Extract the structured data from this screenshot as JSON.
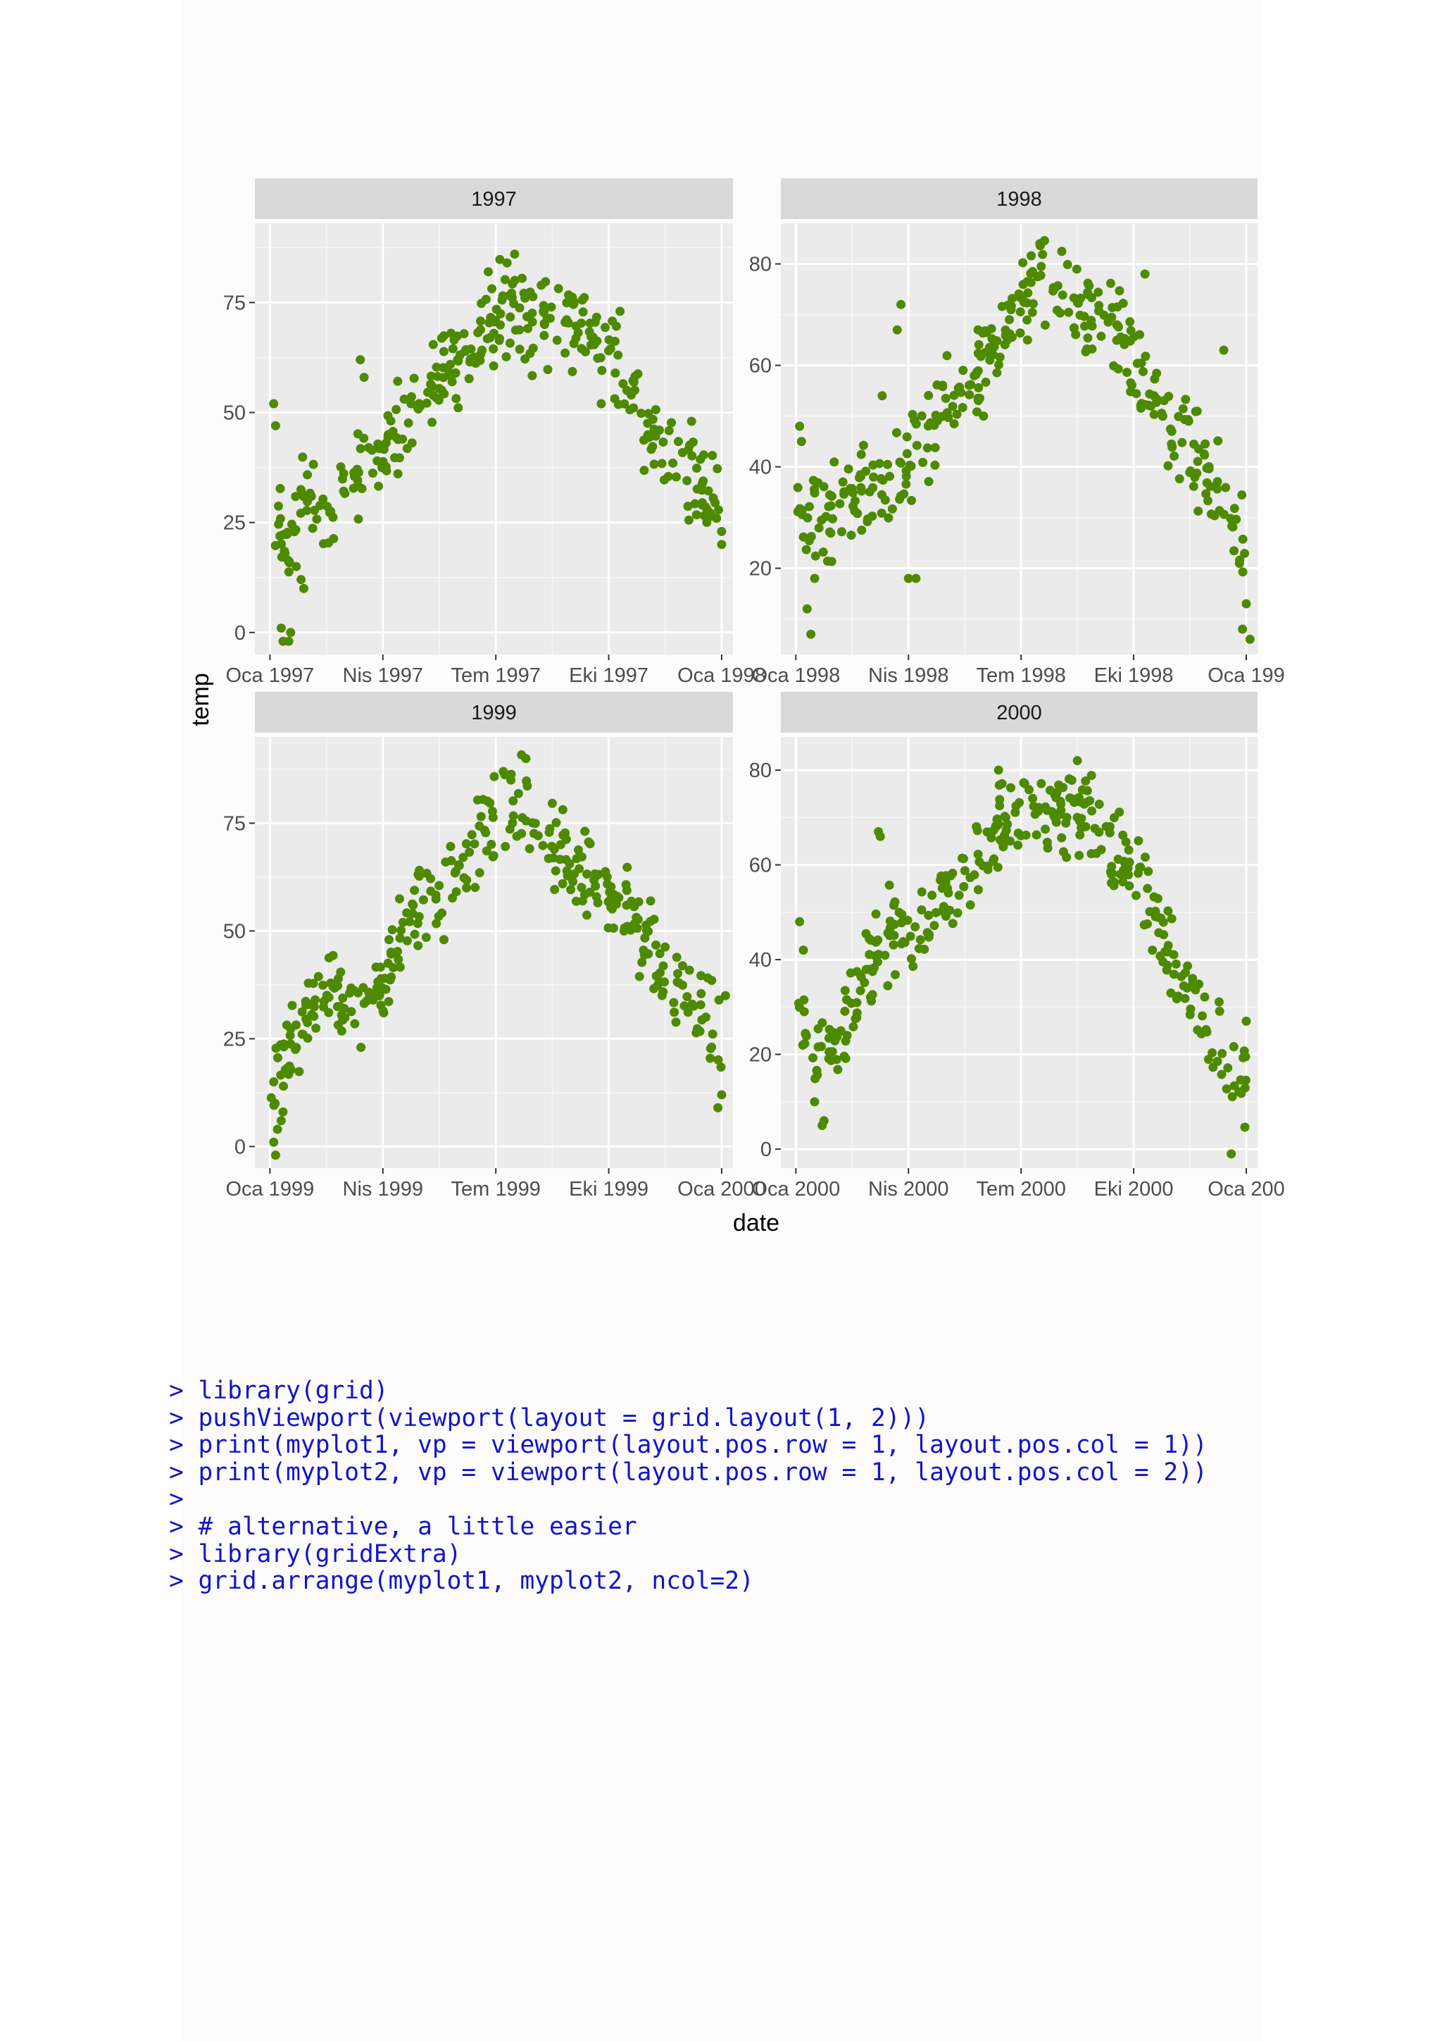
{
  "chart_data": {
    "type": "scatter",
    "xlabel": "date",
    "ylabel": "temp",
    "point_color": "#4d8a00",
    "panel_bg": "#ebebeb",
    "strip_bg": "#d9d9d9",
    "grid": true,
    "panels": [
      {
        "strip": "1997",
        "y_range": [
          -5,
          93
        ],
        "y_ticks": [
          0,
          25,
          50,
          75
        ],
        "x_range": [
          -0.4,
          12.3
        ],
        "x_ticks": [
          0,
          3,
          6,
          9,
          12
        ],
        "x_tick_labels": [
          "Oca 1997",
          "Nis 1997",
          "Tem 1997",
          "Eki 1997",
          "Oca 1998"
        ],
        "anchors": [
          [
            0,
            24
          ],
          [
            0.5,
            20
          ],
          [
            1,
            28
          ],
          [
            1.5,
            28
          ],
          [
            2,
            34
          ],
          [
            2.5,
            38
          ],
          [
            3,
            42
          ],
          [
            3.5,
            48
          ],
          [
            4,
            52
          ],
          [
            4.5,
            58
          ],
          [
            5,
            62
          ],
          [
            5.5,
            67
          ],
          [
            6,
            72
          ],
          [
            6.5,
            74
          ],
          [
            7,
            70
          ],
          [
            7.5,
            70
          ],
          [
            8,
            68
          ],
          [
            8.5,
            66
          ],
          [
            9,
            64
          ],
          [
            9.5,
            58
          ],
          [
            10,
            48
          ],
          [
            10.5,
            40
          ],
          [
            11,
            37
          ],
          [
            11.5,
            32
          ],
          [
            12,
            28
          ]
        ],
        "spread": 7,
        "n_points": 330,
        "seed": 11,
        "extras": [
          [
            0.1,
            52
          ],
          [
            0.15,
            47
          ],
          [
            0.3,
            1
          ],
          [
            0.35,
            -2
          ],
          [
            0.5,
            -2
          ],
          [
            0.55,
            0
          ],
          [
            0.7,
            15
          ],
          [
            0.9,
            10
          ],
          [
            0.4,
            18
          ],
          [
            2.4,
            62
          ],
          [
            2.5,
            58
          ],
          [
            6.3,
            84
          ],
          [
            6.5,
            86
          ],
          [
            5.8,
            82
          ],
          [
            9.3,
            73
          ],
          [
            11.2,
            48
          ],
          [
            12,
            20
          ],
          [
            8.8,
            52
          ]
        ]
      },
      {
        "strip": "1998",
        "y_range": [
          3,
          88
        ],
        "y_ticks": [
          20,
          40,
          60,
          80
        ],
        "x_range": [
          -0.4,
          12.3
        ],
        "x_ticks": [
          0,
          3,
          6,
          9,
          12
        ],
        "x_tick_labels": [
          "Oca 1998",
          "Nis 1998",
          "Tem 1998",
          "Eki 1998",
          "Oca 199"
        ],
        "anchors": [
          [
            0,
            32
          ],
          [
            0.5,
            28
          ],
          [
            1,
            32
          ],
          [
            1.5,
            35
          ],
          [
            2,
            38
          ],
          [
            2.5,
            37
          ],
          [
            3,
            40
          ],
          [
            3.5,
            46
          ],
          [
            4,
            52
          ],
          [
            4.5,
            56
          ],
          [
            5,
            60
          ],
          [
            5.5,
            66
          ],
          [
            6,
            72
          ],
          [
            6.5,
            75
          ],
          [
            7,
            74
          ],
          [
            7.5,
            73
          ],
          [
            8,
            70
          ],
          [
            8.5,
            66
          ],
          [
            9,
            60
          ],
          [
            9.5,
            55
          ],
          [
            10,
            48
          ],
          [
            10.5,
            44
          ],
          [
            11,
            38
          ],
          [
            11.5,
            33
          ],
          [
            12,
            22
          ]
        ],
        "spread": 6.5,
        "n_points": 330,
        "seed": 23,
        "extras": [
          [
            0.1,
            48
          ],
          [
            0.15,
            45
          ],
          [
            0.3,
            12
          ],
          [
            0.4,
            7
          ],
          [
            0.5,
            18
          ],
          [
            2.3,
            54
          ],
          [
            2.8,
            72
          ],
          [
            2.7,
            67
          ],
          [
            3,
            18
          ],
          [
            3.2,
            18
          ],
          [
            6.5,
            84
          ],
          [
            5,
            50
          ],
          [
            11.4,
            63
          ],
          [
            11.9,
            8
          ],
          [
            12.1,
            6
          ],
          [
            12,
            13
          ],
          [
            9.3,
            78
          ]
        ]
      },
      {
        "strip": "1999",
        "y_range": [
          -5,
          95
        ],
        "y_ticks": [
          0,
          25,
          50,
          75
        ],
        "x_range": [
          -0.4,
          12.3
        ],
        "x_ticks": [
          0,
          3,
          6,
          9,
          12
        ],
        "x_tick_labels": [
          "Oca 1999",
          "Nis 1999",
          "Tem 1999",
          "Eki 1999",
          "Oca 2000"
        ],
        "anchors": [
          [
            0,
            12
          ],
          [
            0.5,
            22
          ],
          [
            1,
            32
          ],
          [
            1.5,
            36
          ],
          [
            2,
            30
          ],
          [
            2.5,
            30
          ],
          [
            3,
            38
          ],
          [
            3.5,
            50
          ],
          [
            4,
            55
          ],
          [
            4.5,
            58
          ],
          [
            5,
            62
          ],
          [
            5.5,
            70
          ],
          [
            6,
            75
          ],
          [
            6.5,
            78
          ],
          [
            7,
            76
          ],
          [
            7.5,
            70
          ],
          [
            8,
            67
          ],
          [
            8.5,
            62
          ],
          [
            9,
            58
          ],
          [
            9.5,
            52
          ],
          [
            10,
            47
          ],
          [
            10.5,
            42
          ],
          [
            11,
            37
          ],
          [
            11.5,
            32
          ],
          [
            12,
            25
          ]
        ],
        "spread": 7,
        "n_points": 330,
        "seed": 37,
        "extras": [
          [
            0.1,
            1
          ],
          [
            0.15,
            -2
          ],
          [
            0.2,
            4
          ],
          [
            0.3,
            6
          ],
          [
            0.1,
            15
          ],
          [
            6.8,
            90
          ],
          [
            6.2,
            87
          ],
          [
            6.4,
            85
          ],
          [
            11.9,
            9
          ],
          [
            12,
            12
          ],
          [
            12.1,
            35
          ]
        ]
      },
      {
        "strip": "2000",
        "y_range": [
          -4,
          87
        ],
        "y_ticks": [
          0,
          20,
          40,
          60,
          80
        ],
        "x_range": [
          -0.4,
          12.3
        ],
        "x_ticks": [
          0,
          3,
          6,
          9,
          12
        ],
        "x_tick_labels": [
          "Oca 2000",
          "Nis 2000",
          "Tem 2000",
          "Eki 2000",
          "Oca 200"
        ],
        "anchors": [
          [
            0,
            30
          ],
          [
            0.5,
            22
          ],
          [
            1,
            22
          ],
          [
            1.5,
            30
          ],
          [
            2,
            40
          ],
          [
            2.5,
            46
          ],
          [
            3,
            46
          ],
          [
            3.5,
            48
          ],
          [
            4,
            52
          ],
          [
            4.5,
            58
          ],
          [
            5,
            62
          ],
          [
            5.5,
            68
          ],
          [
            6,
            70
          ],
          [
            6.5,
            72
          ],
          [
            7,
            72
          ],
          [
            7.5,
            72
          ],
          [
            8,
            70
          ],
          [
            8.5,
            64
          ],
          [
            9,
            60
          ],
          [
            9.5,
            50
          ],
          [
            10,
            42
          ],
          [
            10.5,
            32
          ],
          [
            11,
            24
          ],
          [
            11.5,
            18
          ],
          [
            12,
            14
          ]
        ],
        "spread": 6.5,
        "n_points": 330,
        "seed": 53,
        "extras": [
          [
            0.1,
            48
          ],
          [
            0.2,
            42
          ],
          [
            0.5,
            10
          ],
          [
            0.7,
            5
          ],
          [
            0.75,
            6
          ],
          [
            1.2,
            25
          ],
          [
            2.2,
            67
          ],
          [
            2.25,
            66
          ],
          [
            5.4,
            80
          ],
          [
            7.5,
            82
          ],
          [
            11.6,
            -1
          ],
          [
            12,
            27
          ],
          [
            9.5,
            42
          ]
        ]
      }
    ]
  },
  "console": {
    "lines": [
      "> library(grid)",
      "> pushViewport(viewport(layout = grid.layout(1, 2)))",
      "> print(myplot1, vp = viewport(layout.pos.row = 1, layout.pos.col = 1))",
      "> print(myplot2, vp = viewport(layout.pos.row = 1, layout.pos.col = 2))",
      ">",
      "> # alternative, a little easier",
      "> library(gridExtra)",
      "> grid.arrange(myplot1, myplot2, ncol=2)"
    ]
  }
}
